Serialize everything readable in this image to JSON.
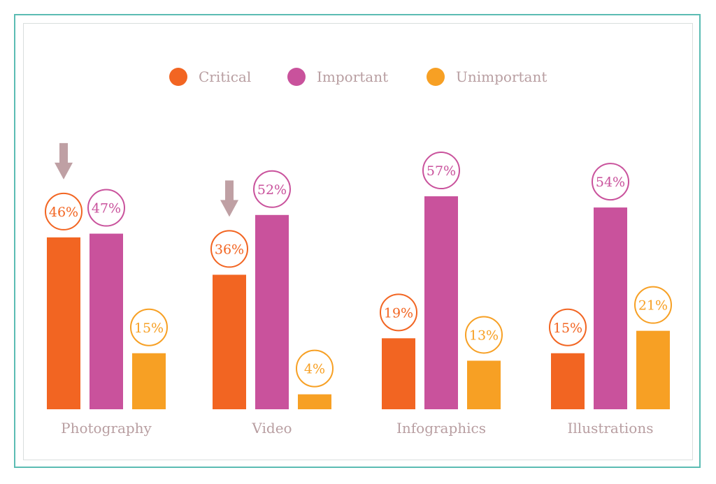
{
  "chart_data": {
    "type": "bar",
    "title": "",
    "xlabel": "",
    "ylabel": "",
    "ylim": [
      0,
      60
    ],
    "grid": false,
    "legend_position": "top-center",
    "categories": [
      "Photography",
      "Video",
      "Infographics",
      "Illustrations"
    ],
    "series": [
      {
        "name": "Critical",
        "color": "#f26522",
        "values": [
          46,
          36,
          19,
          15
        ]
      },
      {
        "name": "Important",
        "color": "#c9529c",
        "values": [
          47,
          52,
          57,
          54
        ]
      },
      {
        "name": "Unimportant",
        "color": "#f7a024",
        "values": [
          15,
          4,
          13,
          21
        ]
      }
    ],
    "value_suffix": "%",
    "annotations": [
      {
        "type": "down-arrow",
        "category": "Photography",
        "series": "Critical",
        "color": "#bfa0a4"
      },
      {
        "type": "down-arrow",
        "category": "Video",
        "series": "Critical",
        "color": "#bfa0a4"
      }
    ],
    "label_color": "#b89ea1"
  }
}
